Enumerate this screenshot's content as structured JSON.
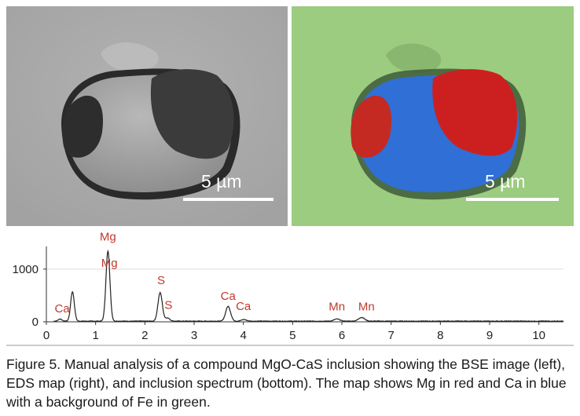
{
  "bse_panel": {
    "scale_label": "5 µm"
  },
  "eds_panel": {
    "scale_label": "5 µm"
  },
  "colors": {
    "mg": "#cc2020",
    "ca": "#2f6fd6",
    "fe": "#9ccc7f",
    "label": "#c0392b"
  },
  "chart_data": {
    "type": "line",
    "xlim": [
      0,
      10.5
    ],
    "ylim": [
      0,
      1400
    ],
    "x_ticks": [
      0,
      1,
      2,
      3,
      4,
      5,
      6,
      7,
      8,
      9,
      10
    ],
    "y_ticks": [
      0,
      1000
    ],
    "peaks": [
      {
        "x": 0.28,
        "y": 40
      },
      {
        "x": 0.53,
        "y": 560
      },
      {
        "x": 1.25,
        "y": 1330
      },
      {
        "x": 2.31,
        "y": 540
      },
      {
        "x": 2.46,
        "y": 60
      },
      {
        "x": 3.69,
        "y": 280
      },
      {
        "x": 4.01,
        "y": 30
      },
      {
        "x": 5.9,
        "y": 40
      },
      {
        "x": 6.4,
        "y": 70
      }
    ],
    "annotations": [
      {
        "text": "Mg",
        "x": 1.25,
        "y": 1540
      },
      {
        "text": "Mg",
        "x": 1.28,
        "y": 1045
      },
      {
        "text": "S",
        "x": 2.33,
        "y": 715
      },
      {
        "text": "S",
        "x": 2.48,
        "y": 245
      },
      {
        "text": "Ca",
        "x": 0.32,
        "y": 180
      },
      {
        "text": "Ca",
        "x": 3.69,
        "y": 420
      },
      {
        "text": "Ca",
        "x": 4.0,
        "y": 220
      },
      {
        "text": "Mn",
        "x": 5.9,
        "y": 215
      },
      {
        "text": "Mn",
        "x": 6.5,
        "y": 215
      }
    ]
  },
  "caption": "Figure 5. Manual analysis of a compound MgO-CaS inclusion showing the BSE image (left), EDS map (right), and inclusion spectrum (bottom).  The map shows Mg in red and Ca in blue with a background of Fe in green."
}
